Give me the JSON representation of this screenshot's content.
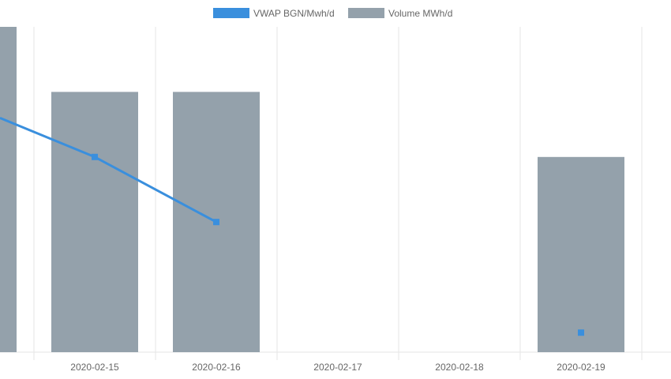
{
  "chart_data": {
    "type": "bar",
    "categories": [
      "",
      "2020-02-15",
      "2020-02-16",
      "2020-02-17",
      "2020-02-18",
      "2020-02-19"
    ],
    "series": [
      {
        "name": "VWAP BGN/Mwh/d",
        "type": "line",
        "values": [
          null,
          60,
          40,
          null,
          null,
          6
        ],
        "color": "#3a8fdd"
      },
      {
        "name": "Volume MWh/d",
        "type": "bar",
        "values": [
          100,
          80,
          80,
          null,
          null,
          60
        ],
        "color": "#94a1ab"
      }
    ],
    "ylim": [
      0,
      100
    ],
    "grid": true,
    "legend": "top-center",
    "line_entry": [
      72,
      0
    ]
  }
}
